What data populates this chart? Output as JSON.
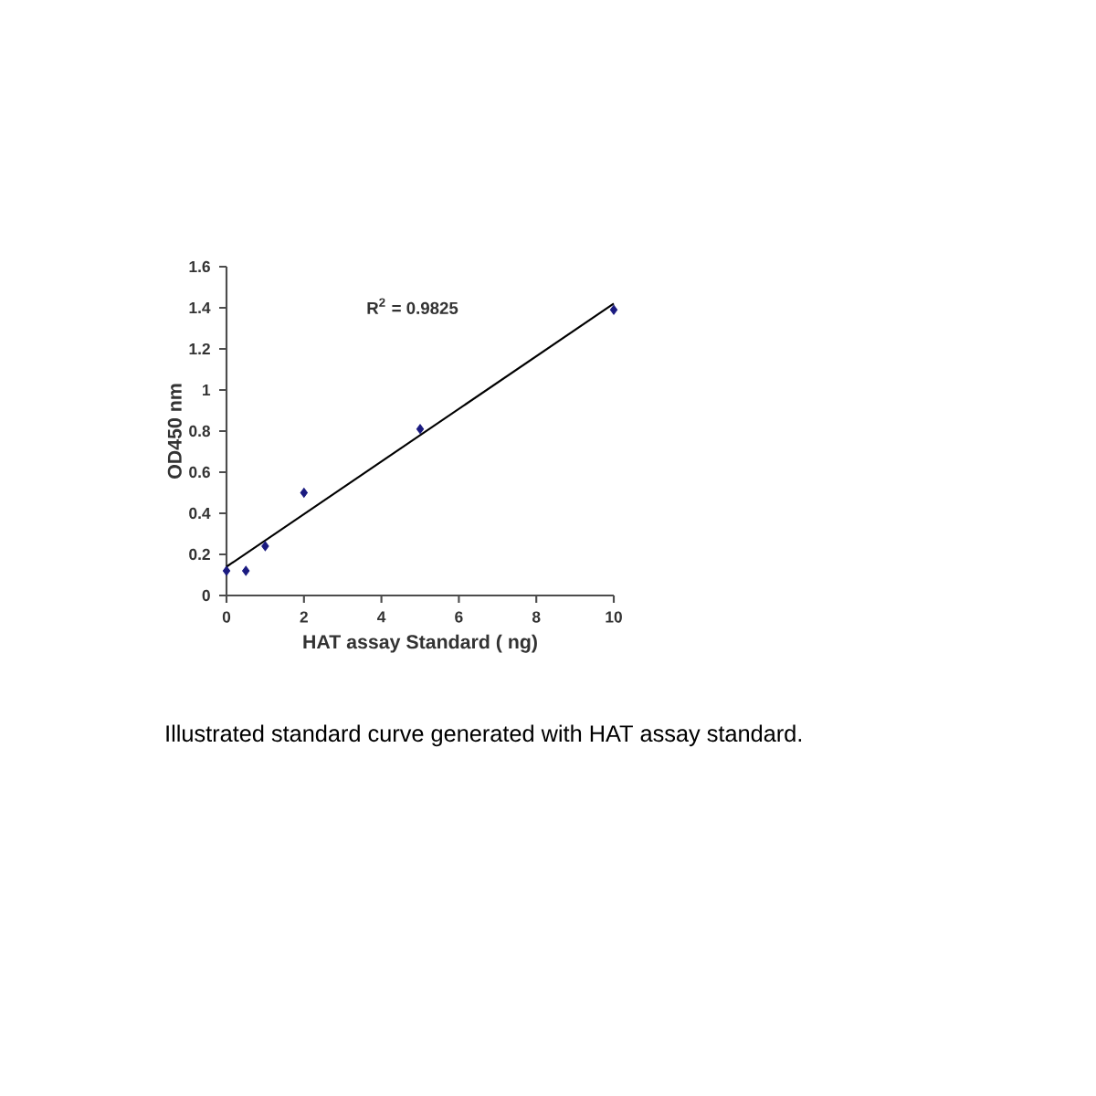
{
  "chart_data": {
    "type": "scatter",
    "xlabel": "HAT assay Standard ( ng)",
    "ylabel": "OD450 nm",
    "xlim": [
      0,
      10
    ],
    "ylim": [
      0,
      1.6
    ],
    "xticks": [
      0,
      2,
      4,
      6,
      8,
      10
    ],
    "yticks": [
      0,
      0.2,
      0.4,
      0.6,
      0.8,
      1,
      1.2,
      1.4,
      1.6
    ],
    "grid": false,
    "series": [
      {
        "color": "#1a1a80",
        "marker": "diamond",
        "x": [
          0,
          0.5,
          1,
          2,
          5,
          10
        ],
        "values": [
          0.12,
          0.12,
          0.24,
          0.5,
          0.81,
          1.39
        ]
      },
      {
        "type": "line",
        "marker": "none",
        "color": "#000000",
        "x": [
          0,
          10
        ],
        "values": [
          0.14,
          1.42
        ]
      }
    ],
    "annotations": [
      "R$^{2}$ = 0.9825",
      "Illustrated standard curve generated with HAT assay standard."
    ]
  }
}
